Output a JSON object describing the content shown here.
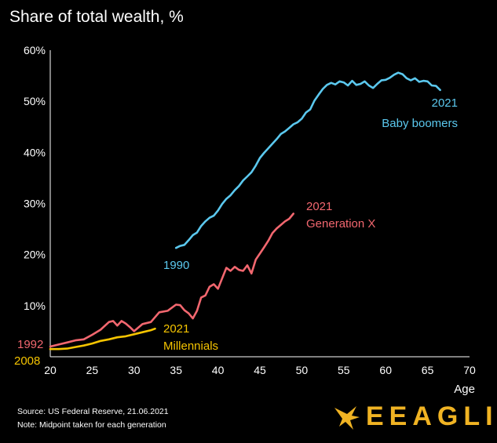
{
  "page": {
    "title": "Share of total wealth, %",
    "source": "Source:  US Federal Reserve, 21.06.2021",
    "note": "Note: Midpoint taken for each generation",
    "brand": "EEAGLI"
  },
  "colors": {
    "background": "#000000",
    "baby_boomers": "#5BC8EE",
    "generation_x": "#F2676F",
    "millennials": "#F5C400",
    "brand": "#F0B323",
    "text": "#FFFFFF"
  },
  "chart_data": {
    "type": "line",
    "title": "Share of total wealth, %",
    "xlabel": "Age",
    "ylabel": "Share of total wealth, %",
    "xlim": [
      20,
      70
    ],
    "ylim": [
      0,
      60
    ],
    "xticks": [
      "20",
      "25",
      "30",
      "35",
      "40",
      "45",
      "50",
      "55",
      "60",
      "65",
      "70"
    ],
    "yticks": [
      "",
      "10%",
      "20%",
      "30%",
      "40%",
      "50%",
      "60%"
    ],
    "grid": false,
    "series": [
      {
        "name": "Baby boomers",
        "color": "#5BC8EE",
        "start_label": "1990",
        "end_label": "2021",
        "x": [
          35.0,
          35.5,
          36.0,
          36.5,
          37.0,
          37.5,
          38.0,
          38.5,
          39.0,
          39.5,
          40.0,
          40.5,
          41.0,
          41.5,
          42.0,
          42.5,
          43.0,
          43.5,
          44.0,
          44.5,
          45.0,
          45.5,
          46.0,
          46.5,
          47.0,
          47.5,
          48.0,
          48.5,
          49.0,
          49.5,
          50.0,
          50.5,
          51.0,
          51.5,
          52.0,
          52.5,
          53.0,
          53.5,
          54.0,
          54.5,
          55.0,
          55.5,
          56.0,
          56.5,
          57.0,
          57.5,
          58.0,
          58.5,
          59.0,
          59.5,
          60.0,
          60.5,
          61.0,
          61.5,
          62.0,
          62.5,
          63.0,
          63.5,
          64.0,
          64.5,
          65.0,
          65.5,
          66.0,
          66.5
        ],
        "values": [
          21.3,
          21.7,
          21.9,
          22.8,
          23.8,
          24.3,
          25.6,
          26.5,
          27.2,
          27.6,
          28.6,
          29.9,
          30.9,
          31.6,
          32.6,
          33.4,
          34.5,
          35.3,
          36.1,
          37.4,
          38.9,
          39.9,
          40.8,
          41.7,
          42.6,
          43.6,
          44.1,
          44.8,
          45.5,
          45.9,
          46.6,
          47.8,
          48.4,
          50.1,
          51.3,
          52.4,
          53.2,
          53.6,
          53.3,
          53.9,
          53.7,
          53.1,
          54.0,
          53.2,
          53.4,
          53.9,
          53.1,
          52.6,
          53.4,
          54.1,
          54.2,
          54.6,
          55.2,
          55.6,
          55.3,
          54.5,
          54.1,
          54.5,
          53.8,
          54.0,
          53.9,
          53.1,
          53.0,
          52.2
        ]
      },
      {
        "name": "Generation X",
        "color": "#F2676F",
        "start_label": "1992",
        "end_label": "2021",
        "x": [
          20,
          21,
          22,
          23,
          24,
          25,
          26,
          27,
          27.5,
          28,
          28.5,
          29,
          29.5,
          30,
          31,
          32,
          33,
          34,
          35,
          35.5,
          36,
          36.5,
          37,
          37.5,
          38,
          38.5,
          39,
          39.5,
          40,
          41,
          41.5,
          42,
          42.5,
          43,
          43.5,
          44,
          44.5,
          45,
          45.5,
          46,
          46.5,
          47,
          47.5,
          48,
          48.5,
          49
        ],
        "values": [
          2.0,
          2.4,
          2.8,
          3.2,
          3.4,
          4.3,
          5.3,
          6.8,
          7.0,
          6.1,
          7.0,
          6.5,
          5.8,
          5.0,
          6.4,
          6.8,
          8.7,
          9.0,
          10.2,
          10.1,
          9.1,
          8.5,
          7.5,
          9.0,
          11.6,
          12.0,
          13.7,
          14.2,
          13.3,
          17.4,
          16.8,
          17.6,
          17.0,
          16.8,
          17.9,
          16.3,
          19.0,
          20.2,
          21.4,
          22.7,
          24.2,
          25.1,
          25.8,
          26.5,
          27.0,
          28.0
        ]
      },
      {
        "name": "Millennials",
        "color": "#F5C400",
        "start_label": "2008",
        "end_label": "2021",
        "x": [
          20,
          21,
          22,
          23,
          24,
          25,
          26,
          27,
          28,
          29,
          30,
          31,
          32,
          32.5
        ],
        "values": [
          1.5,
          1.5,
          1.6,
          1.9,
          2.2,
          2.6,
          3.1,
          3.4,
          3.8,
          4.0,
          4.4,
          4.8,
          5.2,
          5.5
        ]
      }
    ]
  }
}
